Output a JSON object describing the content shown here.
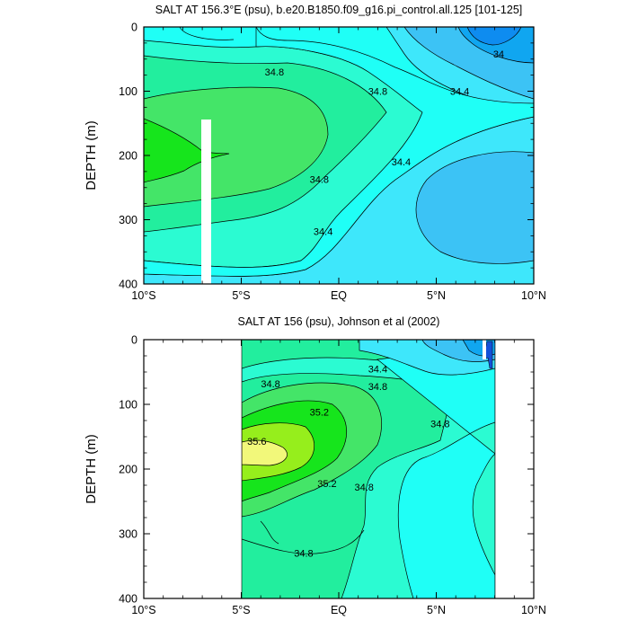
{
  "chart_data": [
    {
      "type": "contour",
      "title": "SALT AT 156.3°E (psu), b.e20.B1850.f09_g16.pi_control.all.125 [101-125]",
      "ylabel": "DEPTH (m)",
      "xlabel": "",
      "xlim": [
        -10,
        10
      ],
      "ylim": [
        0,
        400
      ],
      "y_inverted": true,
      "x_ticks": [
        {
          "value": -10,
          "label": "10°S"
        },
        {
          "value": -5,
          "label": "5°S"
        },
        {
          "value": 0,
          "label": "EQ"
        },
        {
          "value": 5,
          "label": "5°N"
        },
        {
          "value": 10,
          "label": "10°N"
        }
      ],
      "y_ticks": [
        0,
        100,
        200,
        300,
        400
      ],
      "contour_labels": [
        {
          "x": -3.3,
          "y": 70,
          "text": "34.8"
        },
        {
          "x": 2.0,
          "y": 100,
          "text": "34.8"
        },
        {
          "x": 6.2,
          "y": 100,
          "text": "34.4"
        },
        {
          "x": 8.2,
          "y": 42,
          "text": "34"
        },
        {
          "x": 3.2,
          "y": 210,
          "text": "34.4"
        },
        {
          "x": -1.0,
          "y": 237,
          "text": "34.8"
        },
        {
          "x": -0.8,
          "y": 318,
          "text": "34.4"
        }
      ],
      "fill_colors": {
        "s34.0": "#3cc3f5",
        "s34.2": "#3ee7fb",
        "s34.4": "#1ffff6",
        "s34.6": "#2bfbd2",
        "s34.8": "#22ee9e",
        "s35.0": "#44e568",
        "s35.2": "#16e51c",
        "s33.8": "#10a6f0",
        "s33.6": "#0e8cf0"
      }
    },
    {
      "type": "contour",
      "title": "SALT AT 156 (psu), Johnson et al (2002)",
      "ylabel": "DEPTH (m)",
      "xlabel": "",
      "xlim": [
        -10,
        10
      ],
      "ylim": [
        0,
        400
      ],
      "y_inverted": true,
      "data_x_range": [
        -5,
        8
      ],
      "x_ticks": [
        {
          "value": -10,
          "label": "10°S"
        },
        {
          "value": -5,
          "label": "5°S"
        },
        {
          "value": 0,
          "label": "EQ"
        },
        {
          "value": 5,
          "label": "5°N"
        },
        {
          "value": 10,
          "label": "10°N"
        }
      ],
      "y_ticks": [
        0,
        100,
        200,
        300,
        400
      ],
      "contour_labels": [
        {
          "x": -3.5,
          "y": 68,
          "text": "34.8"
        },
        {
          "x": 2.0,
          "y": 45,
          "text": "34.4"
        },
        {
          "x": 2.0,
          "y": 72,
          "text": "34.8"
        },
        {
          "x": -1.0,
          "y": 112,
          "text": "35.2"
        },
        {
          "x": -4.2,
          "y": 157,
          "text": "35.6"
        },
        {
          "x": 5.2,
          "y": 130,
          "text": "34.8"
        },
        {
          "x": -0.6,
          "y": 222,
          "text": "35.2"
        },
        {
          "x": 1.3,
          "y": 228,
          "text": "34.8"
        },
        {
          "x": -1.8,
          "y": 330,
          "text": "34.8"
        }
      ],
      "fill_colors": {
        "s34.0": "#3cc3f5",
        "s34.2": "#3ee7fb",
        "s34.4": "#1ffff6",
        "s34.6": "#2bfbd2",
        "s34.8": "#22ee9e",
        "s35.0": "#44e568",
        "s35.2": "#16e51c",
        "s35.4": "#96ee1c",
        "s35.6": "#f2f87a",
        "s33.8": "#10a6f0",
        "s33.6": "#0e8cf0"
      }
    }
  ]
}
